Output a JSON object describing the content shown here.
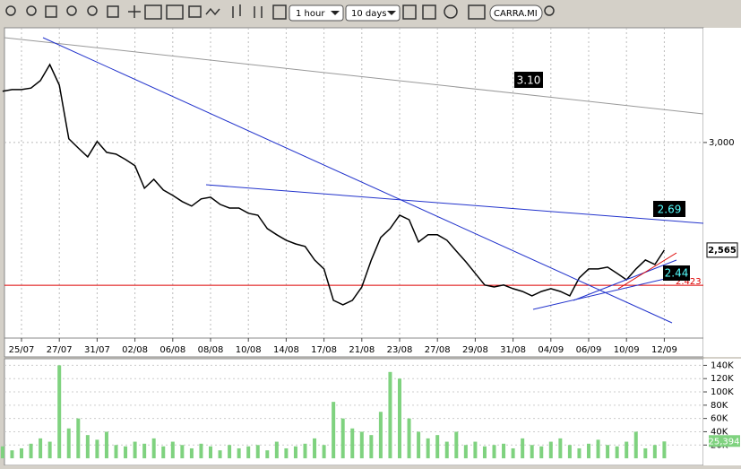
{
  "toolbar": {
    "interval": "1 hour",
    "range": "10 days",
    "symbol": "CARRA.MI"
  },
  "chart_data": [
    {
      "type": "line",
      "categories": [
        null,
        null,
        "25/07",
        null,
        null,
        null,
        "27/07",
        null,
        null,
        null,
        "31/07",
        null,
        null,
        null,
        "02/08",
        null,
        null,
        null,
        "06/08",
        null,
        null,
        null,
        "08/08",
        null,
        null,
        null,
        "10/08",
        null,
        null,
        null,
        "14/08",
        null,
        null,
        null,
        "17/08",
        null,
        null,
        null,
        "21/08",
        null,
        null,
        null,
        "23/08",
        null,
        null,
        null,
        "27/08",
        null,
        null,
        null,
        "29/08",
        null,
        null,
        null,
        "31/08",
        null,
        null,
        null,
        "04/09",
        null,
        null,
        null,
        "06/09",
        null,
        null,
        null,
        "10/09",
        null,
        null,
        null,
        "12/09"
      ],
      "values": [
        3.207,
        3.214,
        3.214,
        3.22,
        3.25,
        3.315,
        3.232,
        3.015,
        2.978,
        2.942,
        3.004,
        2.96,
        2.953,
        2.931,
        2.906,
        2.815,
        2.851,
        2.808,
        2.786,
        2.761,
        2.743,
        2.772,
        2.779,
        2.75,
        2.735,
        2.735,
        2.714,
        2.706,
        2.652,
        2.627,
        2.605,
        2.59,
        2.58,
        2.525,
        2.489,
        2.362,
        2.344,
        2.362,
        2.416,
        2.525,
        2.616,
        2.652,
        2.706,
        2.688,
        2.598,
        2.627,
        2.627,
        2.605,
        2.561,
        2.518,
        2.471,
        2.424,
        2.416,
        2.424,
        2.409,
        2.398,
        2.38,
        2.398,
        2.409,
        2.398,
        2.38,
        2.453,
        2.489,
        2.489,
        2.496,
        2.471,
        2.445,
        2.489,
        2.525,
        2.507,
        2.565
      ],
      "color": "#000000",
      "ylim": [
        2.213,
        3.46
      ],
      "yticks": [
        {
          "value": 3,
          "label": "3,000"
        }
      ],
      "last": {
        "value": 2.565,
        "label": "2,565"
      },
      "hline": {
        "value": 2.423,
        "label": "2.423",
        "color": "#dd0000"
      },
      "trend_labels": [
        "3.10",
        "2.69",
        "2.44"
      ],
      "grid": true
    },
    {
      "type": "bar",
      "values": [
        18000,
        12000,
        15000,
        22000,
        30000,
        25000,
        140000,
        45000,
        60000,
        35000,
        28000,
        40000,
        20000,
        18000,
        25000,
        22000,
        30000,
        18000,
        25000,
        20000,
        15000,
        22000,
        18000,
        12000,
        20000,
        15000,
        18000,
        20000,
        12000,
        25000,
        15000,
        18000,
        22000,
        30000,
        20000,
        85000,
        60000,
        45000,
        40000,
        35000,
        70000,
        130000,
        120000,
        60000,
        40000,
        30000,
        35000,
        25000,
        40000,
        20000,
        25000,
        18000,
        20000,
        22000,
        15000,
        30000,
        20000,
        18000,
        25000,
        30000,
        20000,
        15000,
        22000,
        28000,
        20000,
        18000,
        25000,
        40000,
        15000,
        20000,
        25394
      ],
      "color": "#7fd27f",
      "ylim": [
        -8000,
        150000
      ],
      "yticks": [
        {
          "value": 20000,
          "label": "20K"
        },
        {
          "value": 40000,
          "label": "40K"
        },
        {
          "value": 60000,
          "label": "60K"
        },
        {
          "value": 80000,
          "label": "80K"
        },
        {
          "value": 100000,
          "label": "100K"
        },
        {
          "value": 120000,
          "label": "120K"
        },
        {
          "value": 140000,
          "label": "140K"
        }
      ],
      "last": {
        "value": 25394,
        "label": "25,394"
      }
    }
  ]
}
